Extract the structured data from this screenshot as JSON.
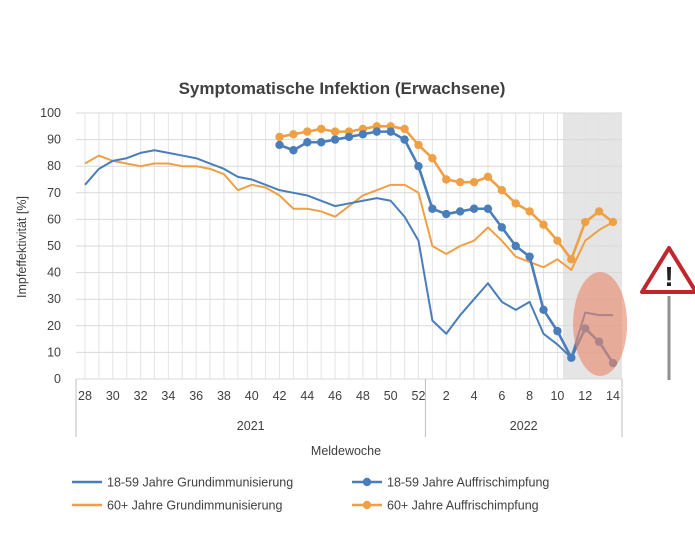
{
  "chart_data": {
    "type": "line",
    "title": "Symptomatische Infektion (Erwachsene)",
    "xlabel": "Meldewoche",
    "ylabel": "Impfeffektivität [%]",
    "ylim": [
      0,
      100
    ],
    "y_ticks": [
      "0",
      "10",
      "20",
      "30",
      "40",
      "50",
      "60",
      "70",
      "80",
      "90",
      "100"
    ],
    "x_ticks": [
      "28",
      "30",
      "32",
      "34",
      "36",
      "38",
      "40",
      "42",
      "44",
      "46",
      "48",
      "50",
      "52",
      "2",
      "4",
      "6",
      "8",
      "10",
      "12",
      "14"
    ],
    "x_groups": [
      "2021",
      "2022"
    ],
    "grid": true,
    "legend_position": "bottom",
    "weeks": [
      "28",
      "29",
      "30",
      "31",
      "32",
      "33",
      "34",
      "35",
      "36",
      "37",
      "38",
      "39",
      "40",
      "41",
      "42",
      "43",
      "44",
      "45",
      "46",
      "47",
      "48",
      "49",
      "50",
      "51",
      "52",
      "1",
      "2",
      "3",
      "4",
      "5",
      "6",
      "7",
      "8",
      "9",
      "10",
      "11",
      "12",
      "13",
      "14"
    ],
    "series": [
      {
        "name": "18-59 Jahre Grundimmunisierung",
        "color": "#4a7ebb",
        "markers": false,
        "values": [
          73,
          79,
          82,
          83,
          85,
          86,
          85,
          84,
          83,
          81,
          79,
          76,
          75,
          73,
          71,
          70,
          69,
          67,
          65,
          66,
          67,
          68,
          67,
          61,
          52,
          22,
          17,
          24,
          30,
          36,
          29,
          26,
          29,
          17,
          13,
          8,
          25,
          24,
          24
        ]
      },
      {
        "name": "18-59 Jahre Auffrischimpfung",
        "color": "#4a7ebb",
        "markers": true,
        "values": [
          null,
          null,
          null,
          null,
          null,
          null,
          null,
          null,
          null,
          null,
          null,
          null,
          null,
          null,
          88,
          86,
          89,
          89,
          90,
          91,
          92,
          93,
          93,
          90,
          80,
          64,
          62,
          63,
          64,
          64,
          57,
          50,
          46,
          26,
          18,
          8,
          19,
          14,
          6
        ]
      },
      {
        "name": "60+ Jahre Grundimmunisierung",
        "color": "#f0a044",
        "markers": false,
        "values": [
          81,
          84,
          82,
          81,
          80,
          81,
          81,
          80,
          80,
          79,
          77,
          71,
          73,
          72,
          69,
          64,
          64,
          63,
          61,
          65,
          69,
          71,
          73,
          73,
          70,
          50,
          47,
          50,
          52,
          57,
          52,
          46,
          44,
          42,
          45,
          41,
          52,
          56,
          59
        ]
      },
      {
        "name": "60+ Jahre Auffrischimpfung",
        "color": "#f0a044",
        "markers": true,
        "values": [
          null,
          null,
          null,
          null,
          null,
          null,
          null,
          null,
          null,
          null,
          null,
          null,
          null,
          null,
          91,
          92,
          93,
          94,
          93,
          93,
          94,
          95,
          95,
          94,
          88,
          83,
          75,
          74,
          74,
          76,
          71,
          66,
          63,
          58,
          52,
          45,
          59,
          63,
          59
        ]
      }
    ],
    "highlight": {
      "shaded_weeks": [
        12,
        14
      ],
      "shade_color": "#d0d0d0",
      "ellipse_color": "#e8876a",
      "warning_symbol": "!",
      "warning_color": "#c0272d"
    }
  }
}
